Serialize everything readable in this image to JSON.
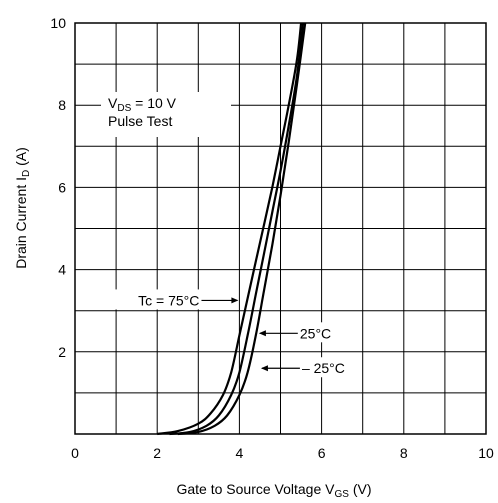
{
  "chart_data": {
    "type": "line",
    "title": "",
    "xlabel": "Gate to Source Voltage V",
    "xlabel_subscript": "GS",
    "xlabel_suffix": " (V)",
    "ylabel": "Drain Current I",
    "ylabel_subscript": "D",
    "ylabel_suffix": "  (A)",
    "xlim": [
      0,
      10
    ],
    "ylim": [
      0,
      10
    ],
    "grid": true,
    "x_ticks": [
      0,
      2,
      4,
      6,
      8,
      10
    ],
    "y_ticks": [
      2,
      4,
      6,
      8,
      10
    ],
    "x_tick_labels": [
      "0",
      "2",
      "4",
      "6",
      "8",
      "10"
    ],
    "y_tick_labels": [
      "2",
      "4",
      "6",
      "8",
      "10"
    ],
    "conditions": {
      "vds_prefix": "V",
      "vds_subscript": "DS",
      "vds_suffix": " = 10 V",
      "pulse": "Pulse Test"
    },
    "series": [
      {
        "name": "Tc = 75°C",
        "x": [
          2.0,
          2.5,
          3.0,
          3.3,
          3.6,
          3.8,
          4.0,
          4.2,
          4.4,
          4.6,
          4.8,
          5.0,
          5.2,
          5.4,
          5.5
        ],
        "y": [
          0.0,
          0.07,
          0.25,
          0.5,
          0.95,
          1.5,
          2.4,
          3.3,
          4.2,
          5.1,
          6.0,
          7.0,
          8.0,
          9.1,
          10.0
        ]
      },
      {
        "name": "25°C",
        "x": [
          2.3,
          2.8,
          3.2,
          3.5,
          3.8,
          4.0,
          4.2,
          4.4,
          4.6,
          4.8,
          5.0,
          5.2,
          5.4,
          5.55
        ],
        "y": [
          0.0,
          0.05,
          0.2,
          0.45,
          0.95,
          1.5,
          2.4,
          3.4,
          4.4,
          5.4,
          6.4,
          7.5,
          8.7,
          10.0
        ]
      },
      {
        "name": "– 25°C",
        "x": [
          2.5,
          3.0,
          3.4,
          3.7,
          4.0,
          4.2,
          4.4,
          4.6,
          4.8,
          5.0,
          5.2,
          5.4,
          5.6
        ],
        "y": [
          0.0,
          0.05,
          0.2,
          0.45,
          0.95,
          1.5,
          2.4,
          3.5,
          4.6,
          5.8,
          7.1,
          8.5,
          10.0
        ]
      }
    ],
    "annotations": [
      {
        "series": 0,
        "text": "Tc = 75°C",
        "side": "left",
        "x": 4.0,
        "y": 3.25
      },
      {
        "series": 1,
        "text": "25°C",
        "side": "right",
        "x": 4.45,
        "y": 2.45
      },
      {
        "series": 2,
        "text": "– 25°C",
        "side": "right",
        "x": 4.5,
        "y": 1.6
      }
    ]
  }
}
